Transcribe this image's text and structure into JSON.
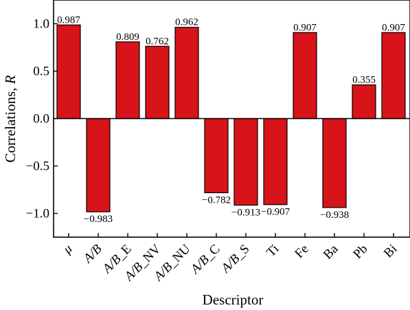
{
  "chart_data": {
    "type": "bar",
    "categories": [
      "μ",
      "A/B",
      "A/B_E",
      "A/B_NV",
      "A/B_NU",
      "A/B_C",
      "A/B_S",
      "Ti",
      "Fe",
      "Ba",
      "Pb",
      "Bi"
    ],
    "category_italic_prefix": [
      true,
      true,
      true,
      true,
      true,
      true,
      true,
      false,
      false,
      false,
      false,
      false
    ],
    "values": [
      0.987,
      -0.983,
      0.809,
      0.762,
      0.962,
      -0.782,
      -0.913,
      -0.907,
      0.907,
      -0.938,
      0.355,
      0.907
    ],
    "data_labels": [
      "0.987",
      "−0.983",
      "0.809",
      "0.762",
      "0.962",
      "−0.782",
      "−0.913",
      "−0.907",
      "0.907",
      "−0.938",
      "0.355",
      "0.907"
    ],
    "title": "",
    "xlabel": "Descriptor",
    "ylabel_main": "Correlations, ",
    "ylabel_var": "R",
    "ylim": [
      -1.25,
      1.25
    ],
    "yticks": [
      1.0,
      0.5,
      0.0,
      -0.5,
      -1.0
    ],
    "ytick_labels": [
      "1.0",
      "0.5",
      "0.0",
      "−0.5",
      "−1.0"
    ],
    "bar_color": "#d7141a",
    "grid": false,
    "legend": "none"
  }
}
